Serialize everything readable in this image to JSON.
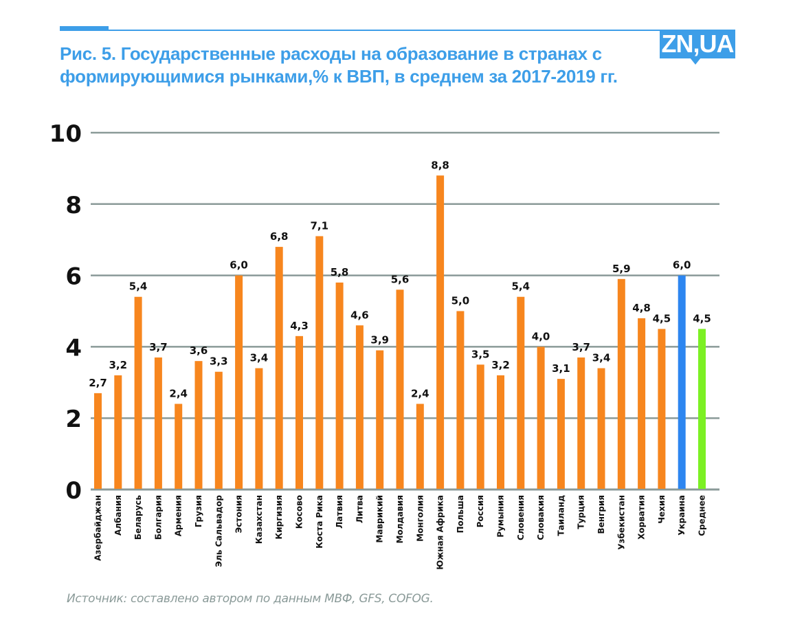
{
  "header": {
    "title_line1": "Рис. 5. Государственные расходы на образование в странах с",
    "title_line2": "формирующимися рынками,% к ВВП, в среднем за 2017-2019 гг.",
    "logo_text": "ZN,UA",
    "accent_color": "#3d9ee8"
  },
  "footer": {
    "source": "Источник: составлено автором по данным МВФ, GFS, COFOG."
  },
  "chart_data": {
    "type": "bar",
    "title": "Рис. 5. Государственные расходы на образование в странах с формирующимися рынками,% к ВВП, в среднем за 2017-2019 гг.",
    "xlabel": "",
    "ylabel": "",
    "ylim": [
      0,
      10
    ],
    "yticks": [
      0,
      2,
      4,
      6,
      8,
      10
    ],
    "grid": true,
    "legend": "none",
    "categories": [
      "Азербайджан",
      "Албания",
      "Беларусь",
      "Болгария",
      "Армения",
      "Грузия",
      "Эль Сальвадор",
      "Эстония",
      "Казахстан",
      "Киргизия",
      "Косово",
      "Коста Рика",
      "Латвия",
      "Литва",
      "Маврикий",
      "Молдавия",
      "Монголия",
      "Южная Африка",
      "Польша",
      "Россия",
      "Румыния",
      "Словения",
      "Словакия",
      "Таиланд",
      "Турция",
      "Венгрия",
      "Узбекистан",
      "Хорватия",
      "Чехия",
      "Украина",
      "Среднее"
    ],
    "values": [
      2.7,
      3.2,
      5.4,
      3.7,
      2.4,
      3.6,
      3.3,
      6.0,
      3.4,
      6.8,
      4.3,
      7.1,
      5.8,
      4.6,
      3.9,
      5.6,
      2.4,
      8.8,
      5.0,
      3.5,
      3.2,
      5.4,
      4.0,
      3.1,
      3.7,
      3.4,
      5.9,
      4.8,
      4.5,
      6.0,
      4.5
    ],
    "value_labels": [
      "2,7",
      "3,2",
      "5,4",
      "3,7",
      "2,4",
      "3,6",
      "3,3",
      "6,0",
      "3,4",
      "6,8",
      "4,3",
      "7,1",
      "5,8",
      "4,6",
      "3,9",
      "5,6",
      "2,4",
      "8,8",
      "5,0",
      "3,5",
      "3,2",
      "5,4",
      "4,0",
      "3,1",
      "3,7",
      "3,4",
      "5,9",
      "4,8",
      "4,5",
      "6,0",
      "4,5"
    ],
    "colors": {
      "default": "#f7861e",
      "highlight": {
        "Украина": "#2d86f0",
        "Среднее": "#7cf024"
      },
      "grid": "#8a9a98"
    }
  }
}
